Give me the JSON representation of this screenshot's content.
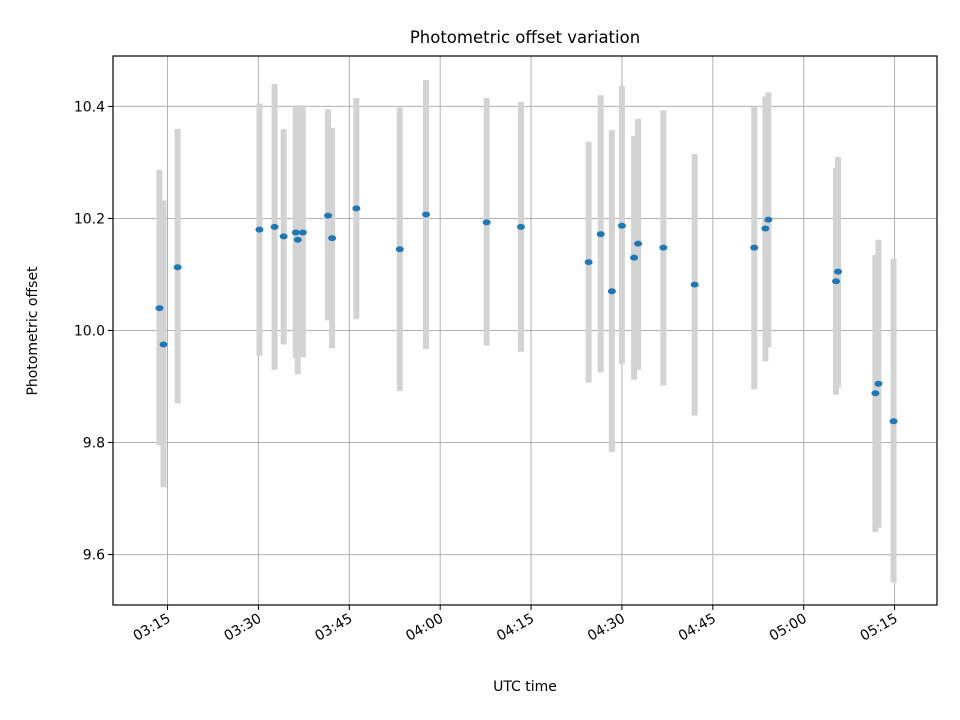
{
  "chart_data": {
    "type": "scatter",
    "title": "Photometric offset variation",
    "xlabel": "UTC time",
    "ylabel": "Photometric offset",
    "x_unit": "UTC time (HH:MM)",
    "xlim": [
      "03:06",
      "05:22"
    ],
    "ylim": [
      9.51,
      10.49
    ],
    "xticks": [
      "03:15",
      "03:30",
      "03:45",
      "04:00",
      "04:15",
      "04:30",
      "04:45",
      "05:00",
      "05:15"
    ],
    "yticks": [
      9.6,
      9.8,
      10.0,
      10.2,
      10.4
    ],
    "ytick_labels": [
      "9.6",
      "9.8",
      "10.0",
      "10.2",
      "10.4"
    ],
    "grid": true,
    "marker_color": "#1f77b4",
    "errorbar_color": "#d3d3d3",
    "points": [
      {
        "x": "03:13:40",
        "y": 10.04,
        "yerr_low": 9.795,
        "yerr_high": 10.287
      },
      {
        "x": "03:14:20",
        "y": 9.975,
        "yerr_low": 9.72,
        "yerr_high": 10.232
      },
      {
        "x": "03:16:40",
        "y": 10.113,
        "yerr_low": 9.87,
        "yerr_high": 10.36
      },
      {
        "x": "03:30:10",
        "y": 10.18,
        "yerr_low": 9.955,
        "yerr_high": 10.405
      },
      {
        "x": "03:32:40",
        "y": 10.185,
        "yerr_low": 9.93,
        "yerr_high": 10.44
      },
      {
        "x": "03:34:10",
        "y": 10.168,
        "yerr_low": 9.975,
        "yerr_high": 10.36
      },
      {
        "x": "03:36:10",
        "y": 10.175,
        "yerr_low": 9.95,
        "yerr_high": 10.4
      },
      {
        "x": "03:36:30",
        "y": 10.162,
        "yerr_low": 9.922,
        "yerr_high": 10.402
      },
      {
        "x": "03:37:20",
        "y": 10.175,
        "yerr_low": 9.952,
        "yerr_high": 10.402
      },
      {
        "x": "03:41:30",
        "y": 10.205,
        "yerr_low": 10.018,
        "yerr_high": 10.395
      },
      {
        "x": "03:42:10",
        "y": 10.165,
        "yerr_low": 9.968,
        "yerr_high": 10.362
      },
      {
        "x": "03:46:10",
        "y": 10.218,
        "yerr_low": 10.02,
        "yerr_high": 10.415
      },
      {
        "x": "03:53:20",
        "y": 10.145,
        "yerr_low": 9.892,
        "yerr_high": 10.398
      },
      {
        "x": "03:57:40",
        "y": 10.207,
        "yerr_low": 9.967,
        "yerr_high": 10.447
      },
      {
        "x": "04:07:40",
        "y": 10.193,
        "yerr_low": 9.973,
        "yerr_high": 10.415
      },
      {
        "x": "04:13:20",
        "y": 10.185,
        "yerr_low": 9.962,
        "yerr_high": 10.408
      },
      {
        "x": "04:24:30",
        "y": 10.122,
        "yerr_low": 9.907,
        "yerr_high": 10.337
      },
      {
        "x": "04:26:30",
        "y": 10.172,
        "yerr_low": 9.925,
        "yerr_high": 10.42
      },
      {
        "x": "04:28:20",
        "y": 10.07,
        "yerr_low": 9.783,
        "yerr_high": 10.358
      },
      {
        "x": "04:30:00",
        "y": 10.187,
        "yerr_low": 9.94,
        "yerr_high": 10.437
      },
      {
        "x": "04:32:00",
        "y": 10.13,
        "yerr_low": 9.912,
        "yerr_high": 10.347
      },
      {
        "x": "04:32:40",
        "y": 10.155,
        "yerr_low": 9.93,
        "yerr_high": 10.378
      },
      {
        "x": "04:36:50",
        "y": 10.148,
        "yerr_low": 9.902,
        "yerr_high": 10.393
      },
      {
        "x": "04:42:00",
        "y": 10.082,
        "yerr_low": 9.848,
        "yerr_high": 10.315
      },
      {
        "x": "04:51:50",
        "y": 10.148,
        "yerr_low": 9.895,
        "yerr_high": 10.4
      },
      {
        "x": "04:53:40",
        "y": 10.182,
        "yerr_low": 9.945,
        "yerr_high": 10.418
      },
      {
        "x": "04:54:10",
        "y": 10.198,
        "yerr_low": 9.97,
        "yerr_high": 10.425
      },
      {
        "x": "05:05:20",
        "y": 10.088,
        "yerr_low": 9.885,
        "yerr_high": 10.29
      },
      {
        "x": "05:05:40",
        "y": 10.105,
        "yerr_low": 9.898,
        "yerr_high": 10.31
      },
      {
        "x": "05:11:50",
        "y": 9.888,
        "yerr_low": 9.64,
        "yerr_high": 10.135
      },
      {
        "x": "05:12:20",
        "y": 9.905,
        "yerr_low": 9.648,
        "yerr_high": 10.162
      },
      {
        "x": "05:14:50",
        "y": 9.838,
        "yerr_low": 9.55,
        "yerr_high": 10.128
      }
    ]
  }
}
